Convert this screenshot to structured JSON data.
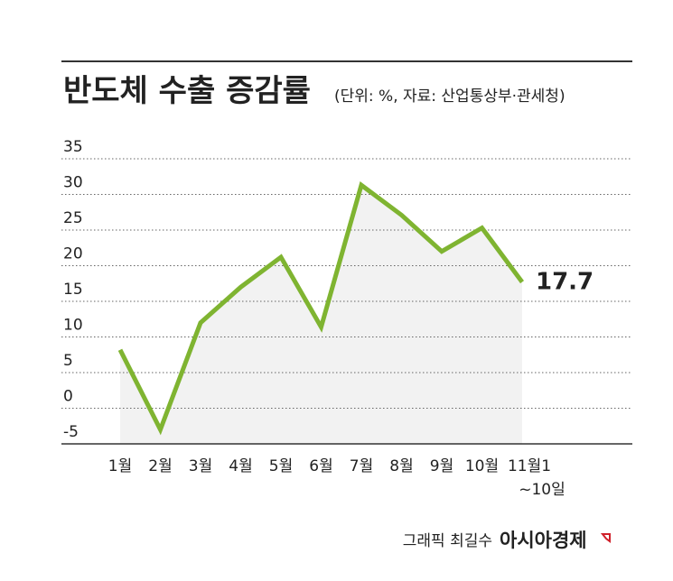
{
  "chart_data": {
    "type": "line",
    "title": "반도체 수출 증감률",
    "subtitle": "(단위: %, 자료: 산업통상부·관세청)",
    "categories": [
      "1월",
      "2월",
      "3월",
      "4월",
      "5월",
      "6월",
      "7월",
      "8월",
      "9월",
      "10월",
      "11월1~10일"
    ],
    "values": [
      8.2,
      -3.0,
      12.0,
      17.0,
      21.2,
      11.4,
      31.3,
      27.1,
      22.0,
      25.3,
      17.7
    ],
    "color": "#7fb431",
    "ylim": [
      -5,
      35
    ],
    "yticks": [
      -5,
      0,
      5,
      10,
      15,
      20,
      25,
      30,
      35
    ],
    "grid": true,
    "credit": "그래픽 최길수",
    "source": "아시아경제"
  }
}
